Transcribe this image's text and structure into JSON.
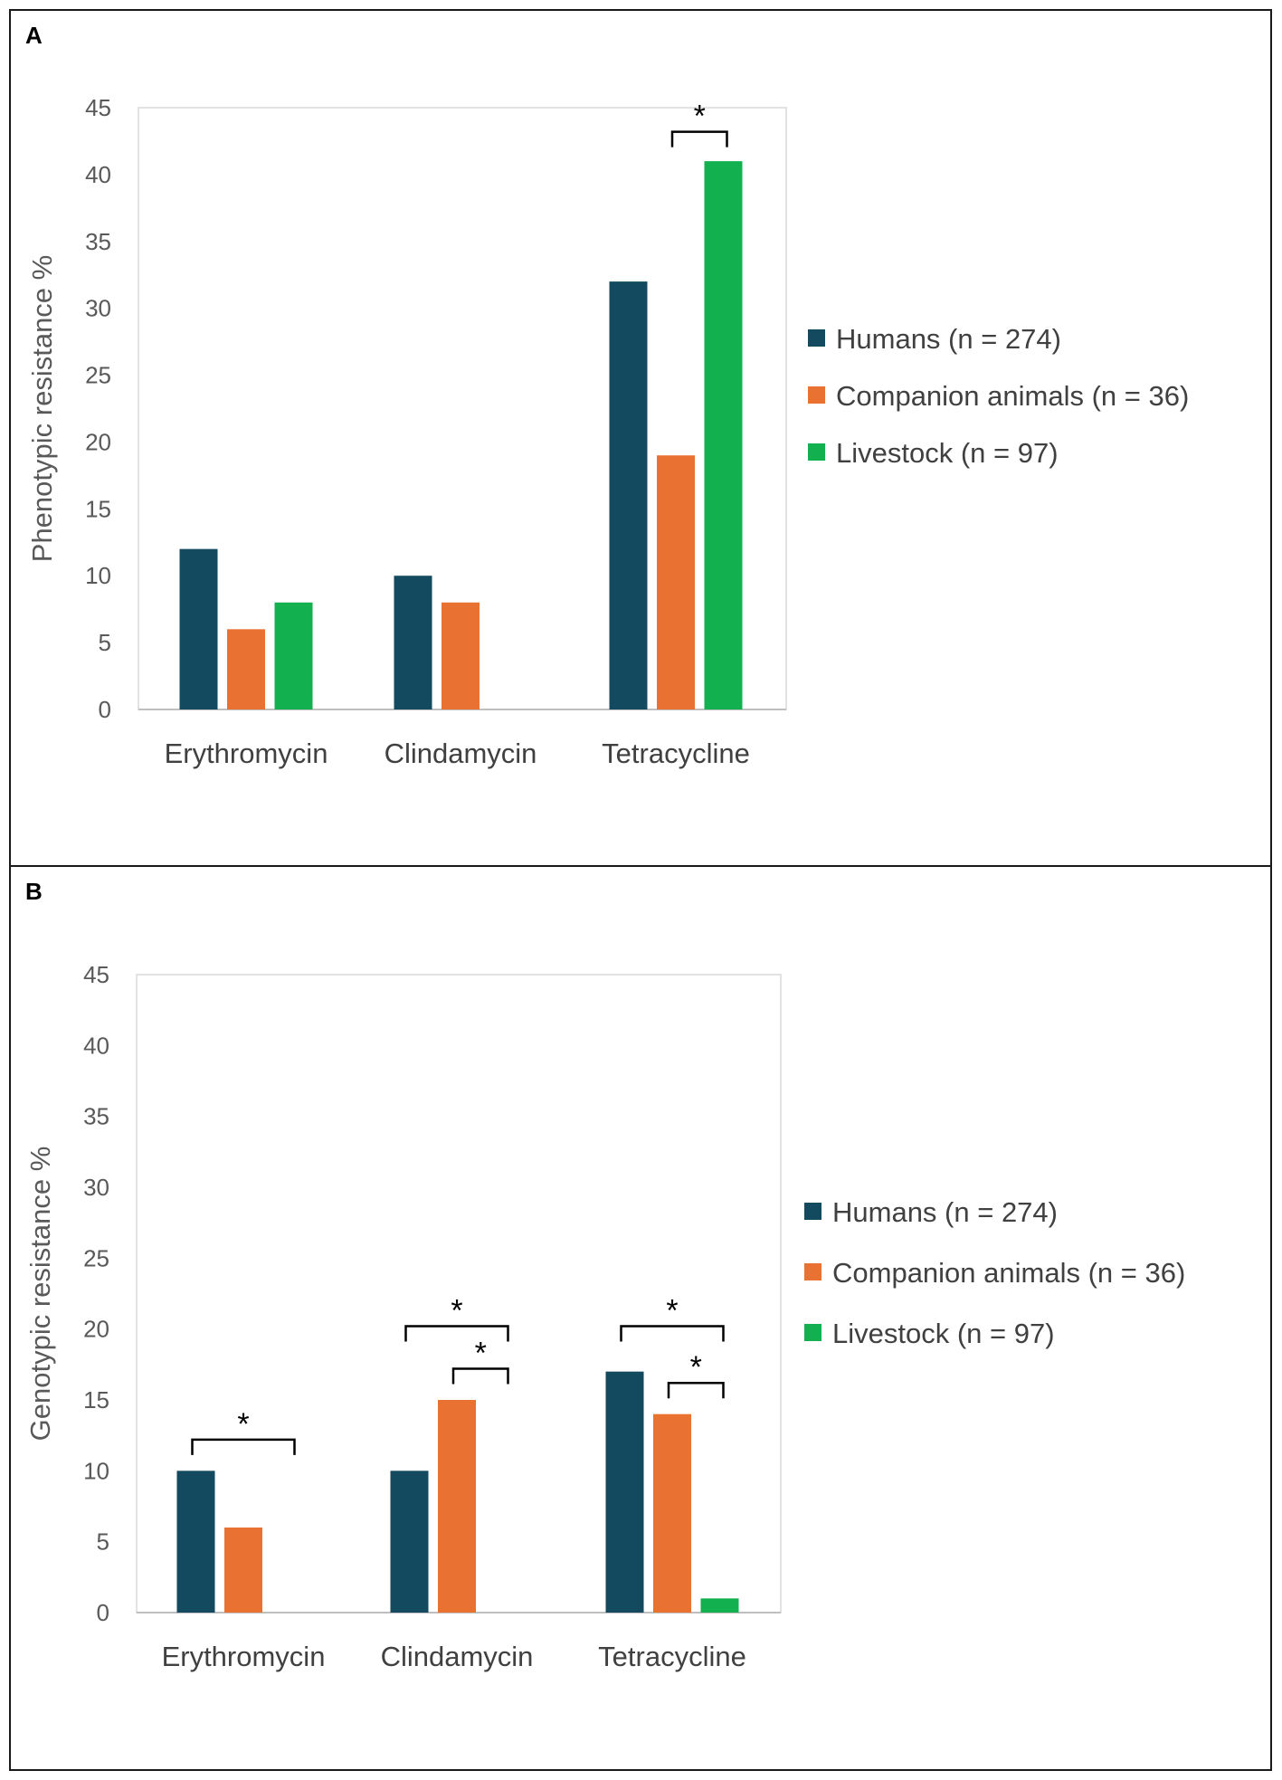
{
  "chart_data": [
    {
      "panel": "A",
      "type": "bar",
      "title": "",
      "xlabel": "",
      "ylabel": "Phenotypic resistance %",
      "ylim": [
        0,
        45
      ],
      "yticks": [
        0,
        5,
        10,
        15,
        20,
        25,
        30,
        35,
        40,
        45
      ],
      "grid": false,
      "legend_position": "right",
      "categories": [
        "Erythromycin",
        "Clindamycin",
        "Tetracycline"
      ],
      "series": [
        {
          "name": "Humans (n = 274)",
          "color": "#134a5f",
          "values": [
            12,
            10,
            32
          ]
        },
        {
          "name": "Companion animals (n = 36)",
          "color": "#e97132",
          "values": [
            6,
            8,
            19
          ]
        },
        {
          "name": "Livestock (n = 97)",
          "color": "#13b04f",
          "values": [
            8,
            0,
            41
          ]
        }
      ],
      "significance": [
        {
          "category": 2,
          "from_series": 1,
          "to_series": 2,
          "level": 43.2,
          "label": "*"
        }
      ]
    },
    {
      "panel": "B",
      "type": "bar",
      "title": "",
      "xlabel": "",
      "ylabel": "Genotypic resistance %",
      "ylim": [
        0,
        45
      ],
      "yticks": [
        0,
        5,
        10,
        15,
        20,
        25,
        30,
        35,
        40,
        45
      ],
      "grid": false,
      "legend_position": "right",
      "categories": [
        "Erythromycin",
        "Clindamycin",
        "Tetracycline"
      ],
      "series": [
        {
          "name": "Humans (n = 274)",
          "color": "#134a5f",
          "values": [
            10,
            10,
            17
          ]
        },
        {
          "name": "Companion animals (n = 36)",
          "color": "#e97132",
          "values": [
            6,
            15,
            14
          ]
        },
        {
          "name": "Livestock (n = 97)",
          "color": "#13b04f",
          "values": [
            0,
            0,
            1
          ]
        }
      ],
      "significance": [
        {
          "category": 0,
          "from_series": 0,
          "to_series": 2,
          "level": 12.2,
          "label": "*"
        },
        {
          "category": 1,
          "from_series": 0,
          "to_series": 2,
          "level": 20.2,
          "label": "*"
        },
        {
          "category": 1,
          "from_series": 1,
          "to_series": 2,
          "level": 17.2,
          "label": "*"
        },
        {
          "category": 2,
          "from_series": 0,
          "to_series": 2,
          "level": 20.2,
          "label": "*"
        },
        {
          "category": 2,
          "from_series": 1,
          "to_series": 2,
          "level": 16.2,
          "label": "*"
        }
      ]
    }
  ]
}
